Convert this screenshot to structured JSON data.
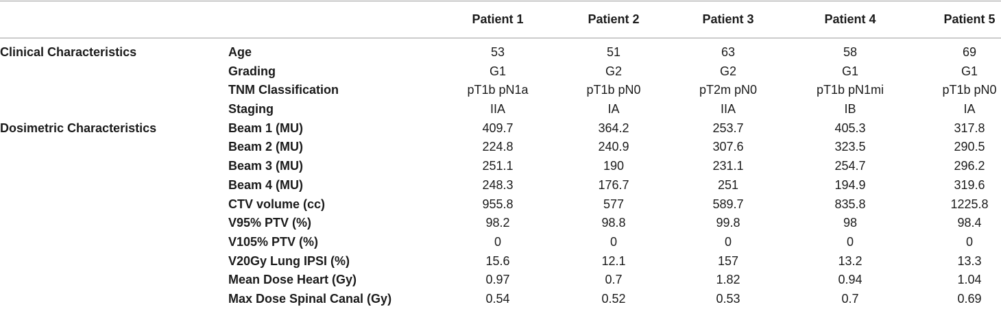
{
  "table": {
    "columns": [
      "Patient 1",
      "Patient 2",
      "Patient 3",
      "Patient 4",
      "Patient 5"
    ],
    "rows": [
      {
        "group": "Clinical Characteristics",
        "param": "Age",
        "values": [
          "53",
          "51",
          "63",
          "58",
          "69"
        ]
      },
      {
        "group": "",
        "param": "Grading",
        "values": [
          "G1",
          "G2",
          "G2",
          "G1",
          "G1"
        ]
      },
      {
        "group": "",
        "param": "TNM Classification",
        "values": [
          "pT1b pN1a",
          "pT1b pN0",
          "pT2m pN0",
          "pT1b pN1mi",
          "pT1b pN0"
        ]
      },
      {
        "group": "",
        "param": "Staging",
        "values": [
          "IIA",
          "IA",
          "IIA",
          "IB",
          "IA"
        ]
      },
      {
        "group": "Dosimetric Characteristics",
        "param": "Beam 1 (MU)",
        "values": [
          "409.7",
          "364.2",
          "253.7",
          "405.3",
          "317.8"
        ]
      },
      {
        "group": "",
        "param": "Beam 2 (MU)",
        "values": [
          "224.8",
          "240.9",
          "307.6",
          "323.5",
          "290.5"
        ]
      },
      {
        "group": "",
        "param": "Beam 3 (MU)",
        "values": [
          "251.1",
          "190",
          "231.1",
          "254.7",
          "296.2"
        ]
      },
      {
        "group": "",
        "param": "Beam 4 (MU)",
        "values": [
          "248.3",
          "176.7",
          "251",
          "194.9",
          "319.6"
        ]
      },
      {
        "group": "",
        "param": "CTV volume (cc)",
        "values": [
          "955.8",
          "577",
          "589.7",
          "835.8",
          "1225.8"
        ]
      },
      {
        "group": "",
        "param": "V95% PTV (%)",
        "values": [
          "98.2",
          "98.8",
          "99.8",
          "98",
          "98.4"
        ]
      },
      {
        "group": "",
        "param": "V105% PTV (%)",
        "values": [
          "0",
          "0",
          "0",
          "0",
          "0"
        ]
      },
      {
        "group": "",
        "param": "V20Gy Lung IPSI (%)",
        "values": [
          "15.6",
          "12.1",
          "157",
          "13.2",
          "13.3"
        ]
      },
      {
        "group": "",
        "param": "Mean Dose Heart (Gy)",
        "values": [
          "0.97",
          "0.7",
          "1.82",
          "0.94",
          "1.04"
        ]
      },
      {
        "group": "",
        "param": "Max Dose Spinal Canal (Gy)",
        "values": [
          "0.54",
          "0.52",
          "0.53",
          "0.7",
          "0.69"
        ]
      }
    ]
  }
}
